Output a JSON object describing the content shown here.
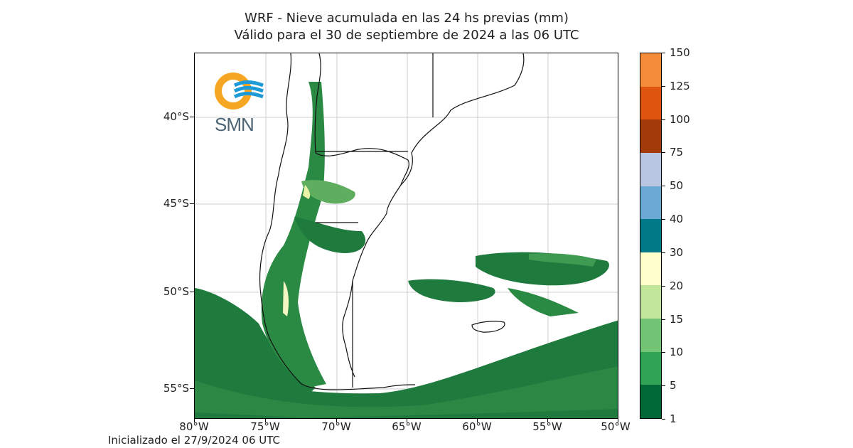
{
  "header": {
    "title_line1": "WRF - Nieve acumulada en las 24 hs previas (mm)",
    "title_line2": "Válido para el 30 de septiembre de 2024 a las 06 UTC"
  },
  "map": {
    "lat_labels": [
      "40°S",
      "45°S",
      "50°S",
      "55°S"
    ],
    "lon_labels": [
      "80°W",
      "75°W",
      "70°W",
      "65°W",
      "60°W",
      "55°W",
      "50°W"
    ],
    "lon_range": [
      -80,
      -50
    ],
    "lat_range": [
      -57,
      -36
    ],
    "grid": true,
    "logo_text": "SMN",
    "logo_colors": {
      "ring": "#f5a623",
      "waves": "#1e9bd7",
      "text": "#4d6475"
    }
  },
  "colorbar": {
    "levels": [
      "1",
      "5",
      "10",
      "15",
      "20",
      "30",
      "40",
      "50",
      "75",
      "100",
      "125",
      "150"
    ],
    "colors": [
      "#006837",
      "#31a354",
      "#74c476",
      "#c2e699",
      "#ffffcc",
      "#007a87",
      "#6aa9d4",
      "#b8c6e2",
      "#a33a0a",
      "#e0550f",
      "#f58c3a"
    ],
    "unit": "mm"
  },
  "footer": {
    "init_text": "Inicializado el 27/9/2024 06 UTC"
  }
}
